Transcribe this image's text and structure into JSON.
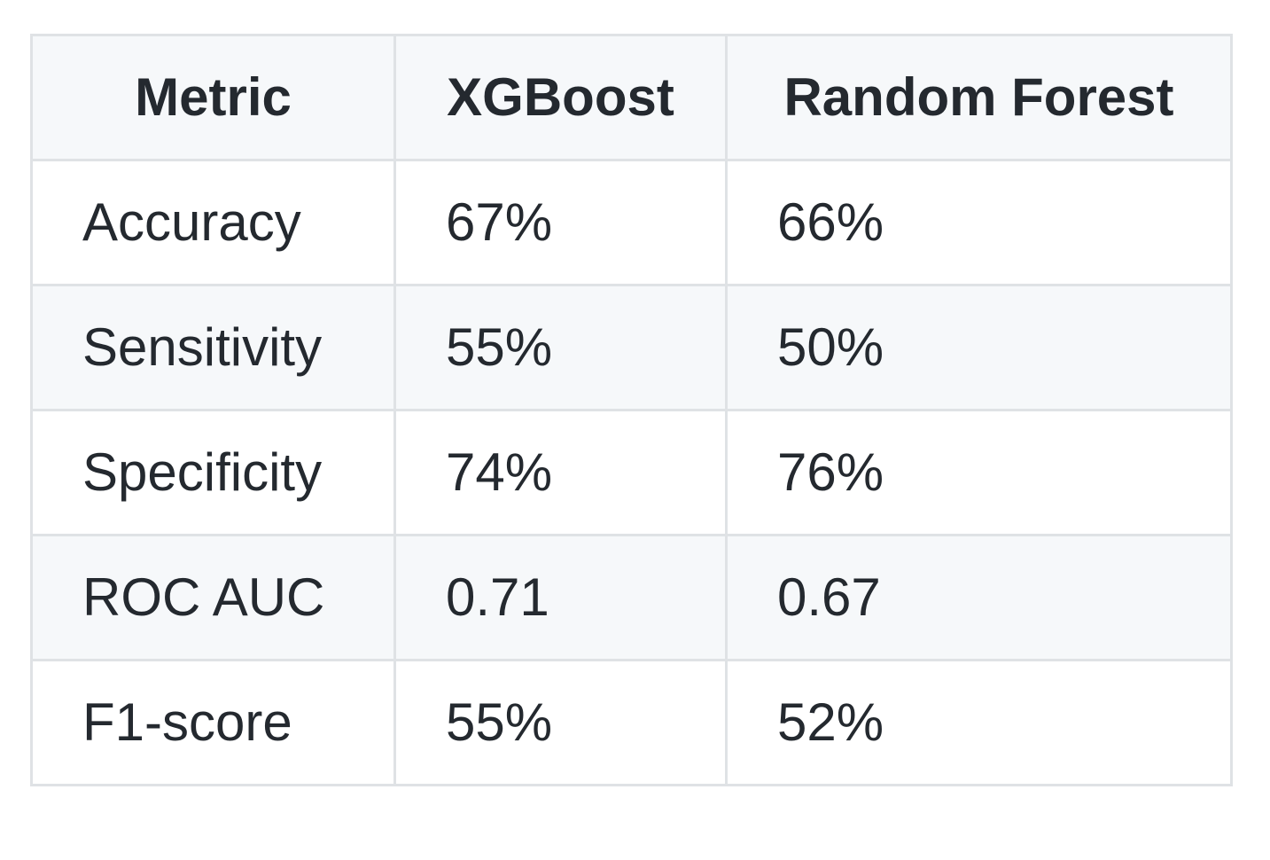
{
  "table": {
    "headers": [
      "Metric",
      "XGBoost",
      "Random Forest"
    ],
    "rows": [
      [
        "Accuracy",
        "67%",
        "66%"
      ],
      [
        "Sensitivity",
        "55%",
        "50%"
      ],
      [
        "Specificity",
        "74%",
        "76%"
      ],
      [
        "ROC AUC",
        "0.71",
        "0.67"
      ],
      [
        "F1-score",
        "55%",
        "52%"
      ]
    ]
  },
  "colors": {
    "border": "#dfe2e5",
    "header_bg": "#f6f8fa",
    "stripe_bg": "#f6f8fa",
    "row_bg": "#ffffff",
    "text": "#24292f"
  }
}
